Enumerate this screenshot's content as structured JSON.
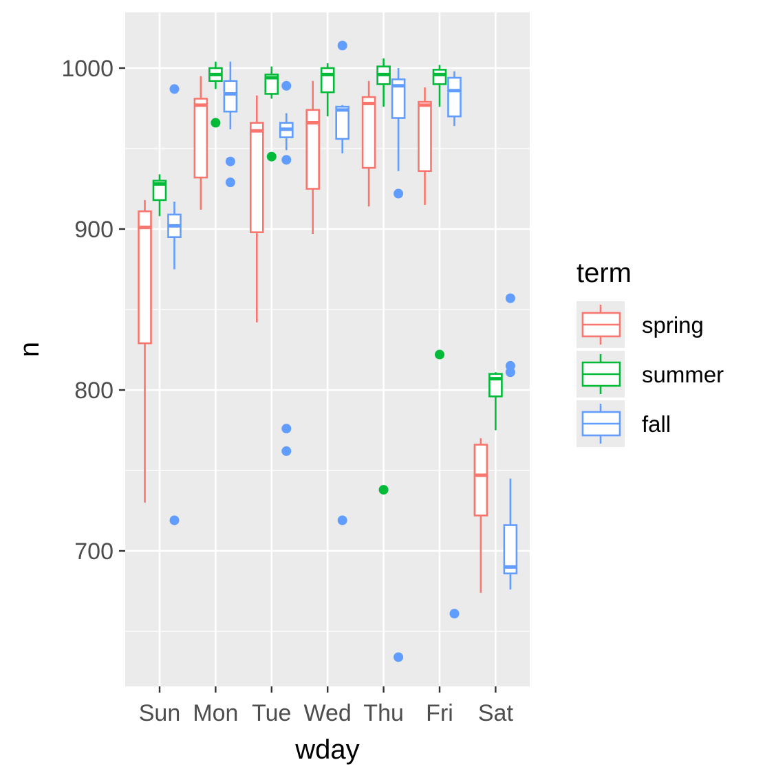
{
  "chart_data": {
    "type": "boxplot",
    "xlabel": "wday",
    "ylabel": "n",
    "categories": [
      "Sun",
      "Mon",
      "Tue",
      "Wed",
      "Thu",
      "Fri",
      "Sat"
    ],
    "yticks": [
      700,
      800,
      900,
      1000
    ],
    "ylim": [
      615,
      1032
    ],
    "grid": true,
    "legend": {
      "title": "term",
      "position": "right"
    },
    "series": [
      {
        "name": "spring",
        "color": "#F8766D",
        "boxes": [
          {
            "category": "Sun",
            "lower": 730,
            "q1": 829,
            "median": 901,
            "q3": 911,
            "upper": 918,
            "outliers": []
          },
          {
            "category": "Mon",
            "lower": 912,
            "q1": 932,
            "median": 977,
            "q3": 981,
            "upper": 995,
            "outliers": []
          },
          {
            "category": "Tue",
            "lower": 842,
            "q1": 898,
            "median": 961,
            "q3": 966,
            "upper": 983,
            "outliers": []
          },
          {
            "category": "Wed",
            "lower": 897,
            "q1": 925,
            "median": 966,
            "q3": 974,
            "upper": 992,
            "outliers": []
          },
          {
            "category": "Thu",
            "lower": 914,
            "q1": 938,
            "median": 978,
            "q3": 982,
            "upper": 992,
            "outliers": []
          },
          {
            "category": "Fri",
            "lower": 915,
            "q1": 936,
            "median": 977,
            "q3": 979,
            "upper": 988,
            "outliers": []
          },
          {
            "category": "Sat",
            "lower": 674,
            "q1": 722,
            "median": 747,
            "q3": 766,
            "upper": 770,
            "outliers": []
          }
        ]
      },
      {
        "name": "summer",
        "color": "#00BA38",
        "boxes": [
          {
            "category": "Sun",
            "lower": 908,
            "q1": 918,
            "median": 928,
            "q3": 930,
            "upper": 934,
            "outliers": []
          },
          {
            "category": "Mon",
            "lower": 987,
            "q1": 992,
            "median": 996,
            "q3": 1000,
            "upper": 1004,
            "outliers": [
              966
            ]
          },
          {
            "category": "Tue",
            "lower": 981,
            "q1": 984,
            "median": 994,
            "q3": 996,
            "upper": 1001,
            "outliers": [
              945
            ]
          },
          {
            "category": "Wed",
            "lower": 970,
            "q1": 985,
            "median": 996,
            "q3": 1000,
            "upper": 1003,
            "outliers": []
          },
          {
            "category": "Thu",
            "lower": 976,
            "q1": 990,
            "median": 996,
            "q3": 1001,
            "upper": 1006,
            "outliers": [
              738
            ]
          },
          {
            "category": "Fri",
            "lower": 976,
            "q1": 990,
            "median": 996,
            "q3": 999,
            "upper": 1002,
            "outliers": [
              822
            ]
          },
          {
            "category": "Sat",
            "lower": 775,
            "q1": 796,
            "median": 807,
            "q3": 810,
            "upper": 811,
            "outliers": []
          }
        ]
      },
      {
        "name": "fall",
        "color": "#619CFF",
        "boxes": [
          {
            "category": "Sun",
            "lower": 875,
            "q1": 895,
            "median": 902,
            "q3": 909,
            "upper": 917,
            "outliers": [
              987,
              719
            ]
          },
          {
            "category": "Mon",
            "lower": 962,
            "q1": 973,
            "median": 984,
            "q3": 992,
            "upper": 1004,
            "outliers": [
              942,
              929
            ]
          },
          {
            "category": "Tue",
            "lower": 949,
            "q1": 957,
            "median": 962,
            "q3": 966,
            "upper": 972,
            "outliers": [
              989,
              943,
              776,
              762
            ]
          },
          {
            "category": "Wed",
            "lower": 947,
            "q1": 956,
            "median": 974,
            "q3": 976,
            "upper": 977,
            "outliers": [
              1014,
              719
            ]
          },
          {
            "category": "Thu",
            "lower": 936,
            "q1": 969,
            "median": 989,
            "q3": 993,
            "upper": 1000,
            "outliers": [
              922,
              634
            ]
          },
          {
            "category": "Fri",
            "lower": 964,
            "q1": 970,
            "median": 986,
            "q3": 994,
            "upper": 998,
            "outliers": [
              661
            ]
          },
          {
            "category": "Sat",
            "lower": 676,
            "q1": 686,
            "median": 690,
            "q3": 716,
            "upper": 745,
            "outliers": [
              857,
              815,
              811
            ]
          }
        ]
      }
    ]
  }
}
